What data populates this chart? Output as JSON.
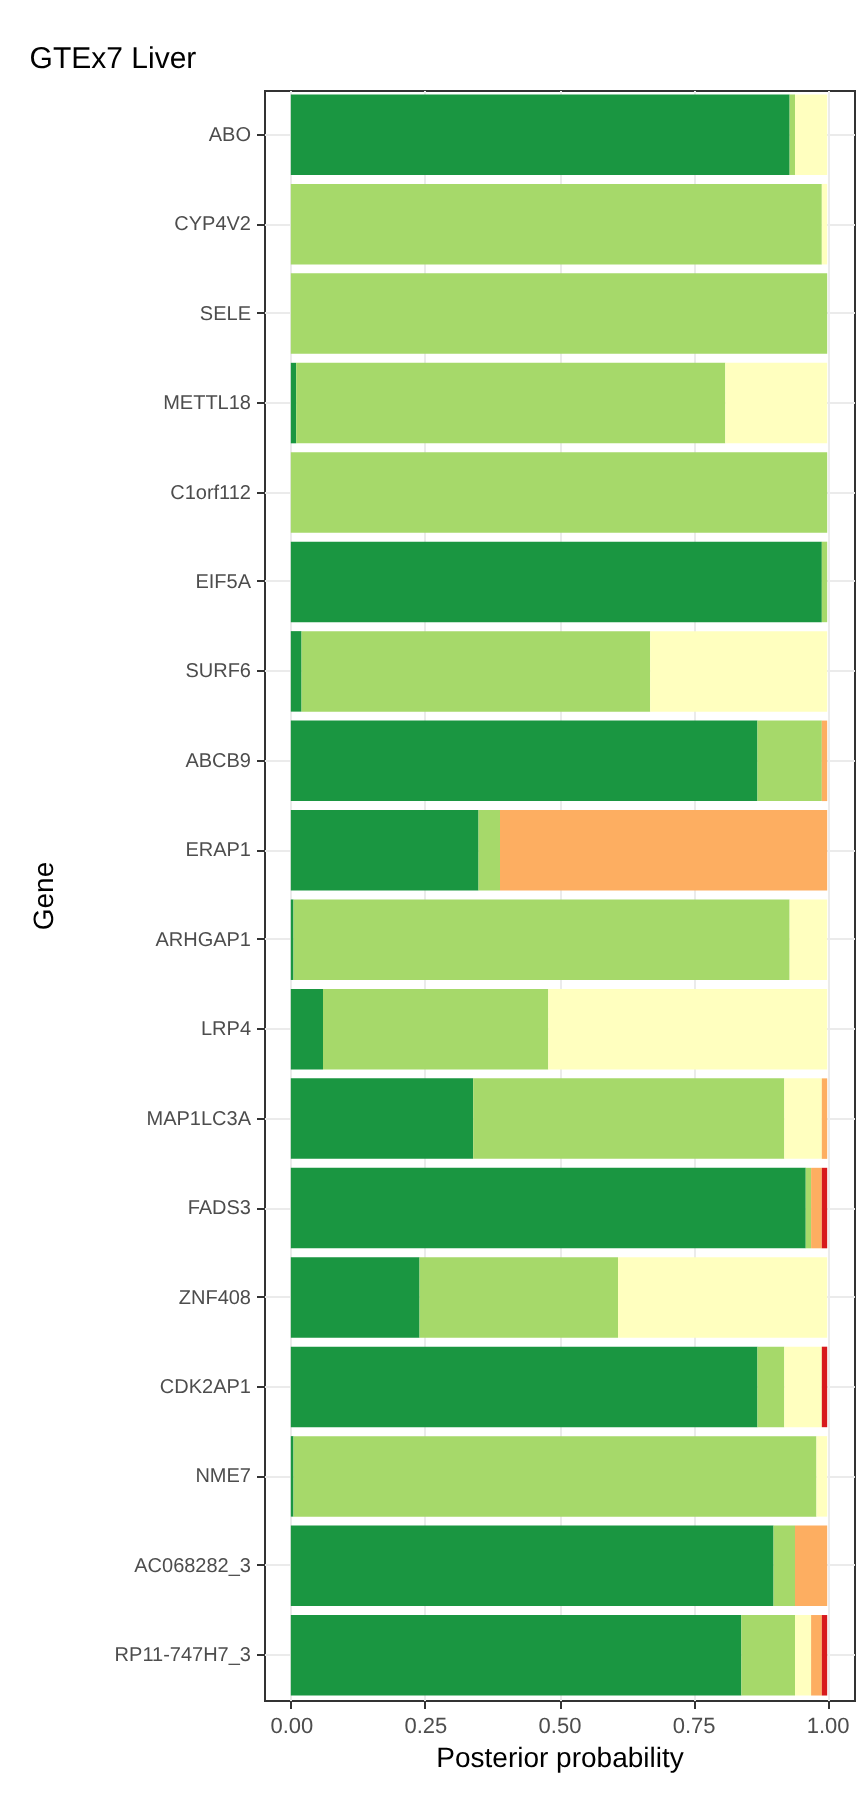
{
  "chart_data": {
    "type": "bar",
    "title": "GTEx7 Liver",
    "xlabel": "Posterior probability",
    "ylabel": "Gene",
    "orientation": "horizontal",
    "stacked": true,
    "grid": true,
    "categories": [
      "ABO",
      "CYP4V2",
      "SELE",
      "METTL18",
      "C1orf112",
      "EIF5A",
      "SURF6",
      "ABCB9",
      "ERAP1",
      "ARHGAP1",
      "LRP4",
      "MAP1LC3A",
      "FADS3",
      "ZNF408",
      "CDK2AP1",
      "NME7",
      "AC068282_3",
      "RP11-747H7_3"
    ],
    "xlim": [
      -0.05,
      1.05
    ],
    "xticks": [
      {
        "value": 0,
        "label": "0.00"
      },
      {
        "value": 0.25,
        "label": "0.25"
      },
      {
        "value": 0.5,
        "label": "0.50"
      },
      {
        "value": 0.75,
        "label": "0.75"
      },
      {
        "value": 1,
        "label": "1.00"
      }
    ],
    "series": [
      {
        "color": "#1a9641",
        "values": [
          0.93,
          0,
          0,
          0.01,
          0,
          0.99,
          0.02,
          0.87,
          0.35,
          0.005,
          0.06,
          0.34,
          0.96,
          0.24,
          0.87,
          0.005,
          0.9,
          0.84
        ]
      },
      {
        "color": "#a6d96a",
        "values": [
          0.01,
          0.99,
          1,
          0.8,
          1,
          0.01,
          0.65,
          0.12,
          0.04,
          0.925,
          0.42,
          0.58,
          0.01,
          0.37,
          0.05,
          0.975,
          0.04,
          0.1
        ]
      },
      {
        "color": "#ffffbf",
        "values": [
          0.06,
          0.01,
          0,
          0.19,
          0,
          0,
          0.33,
          0,
          0,
          0.07,
          0.52,
          0.07,
          0,
          0.39,
          0.07,
          0.02,
          0,
          0.03
        ]
      },
      {
        "color": "#fdae61",
        "values": [
          0,
          0,
          0,
          0,
          0,
          0,
          0,
          0.01,
          0.61,
          0,
          0,
          0.01,
          0.02,
          0,
          0,
          0,
          0.06,
          0.02
        ]
      },
      {
        "color": "#d7191c",
        "values": [
          0,
          0,
          0,
          0,
          0,
          0,
          0,
          0,
          0,
          0,
          0,
          0,
          0.01,
          0,
          0.01,
          0,
          0,
          0.01
        ]
      }
    ]
  }
}
